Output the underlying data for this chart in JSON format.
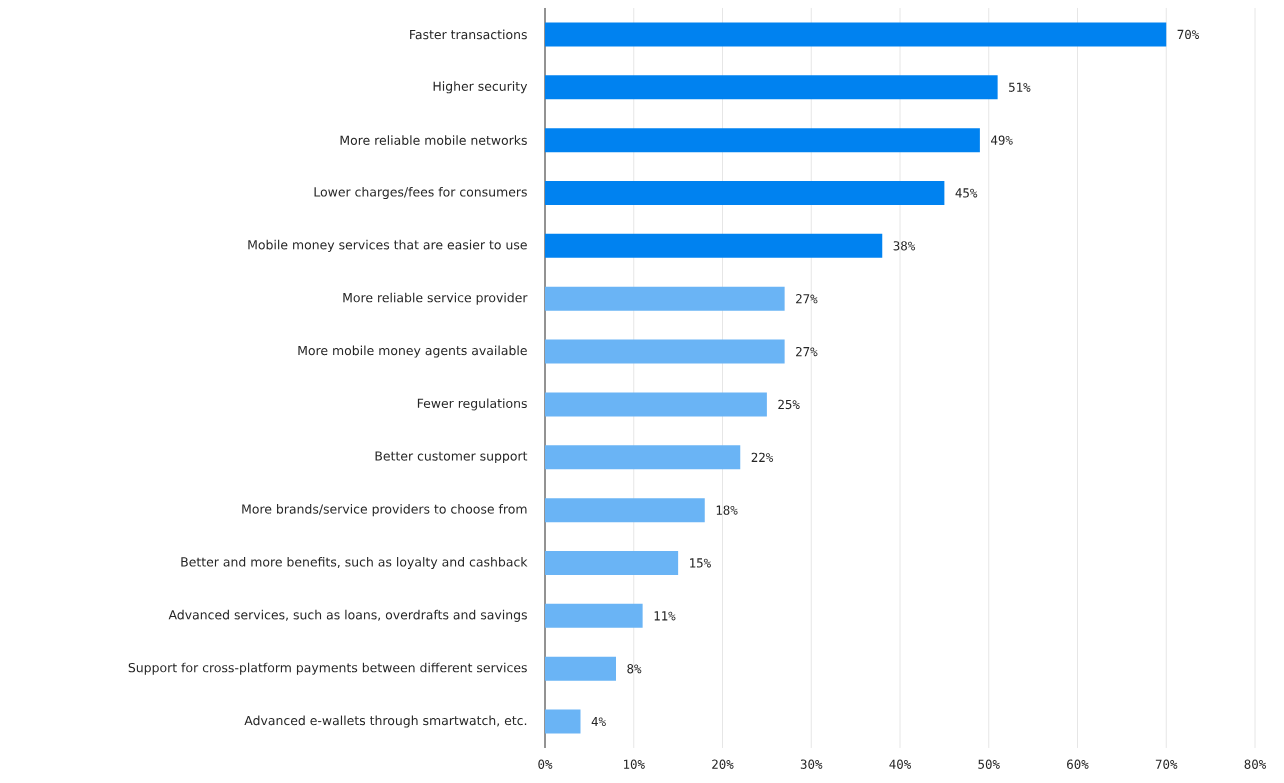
{
  "chart_data": {
    "type": "bar",
    "orientation": "horizontal",
    "categories": [
      "Faster transactions",
      "Higher security",
      "More reliable mobile networks",
      "Lower charges/fees for consumers",
      "Mobile money services that are easier to use",
      "More reliable service provider",
      "More mobile money agents available",
      "Fewer regulations",
      "Better customer support",
      "More brands/service providers to choose from",
      "Better and more benefits, such as loyalty and cashback",
      "Advanced services, such as loans, overdrafts and savings",
      "Support for cross-platform payments between different services",
      "Advanced e-wallets through smartwatch, etc."
    ],
    "values": [
      70,
      51,
      49,
      45,
      38,
      27,
      27,
      25,
      22,
      18,
      15,
      11,
      8,
      4
    ],
    "value_labels": [
      "70%",
      "51%",
      "49%",
      "45%",
      "38%",
      "27%",
      "27%",
      "25%",
      "22%",
      "18%",
      "15%",
      "11%",
      "8%",
      "4%"
    ],
    "colors": [
      "#0082f0",
      "#0082f0",
      "#0082f0",
      "#0082f0",
      "#0082f0",
      "#6ab4f5",
      "#6ab4f5",
      "#6ab4f5",
      "#6ab4f5",
      "#6ab4f5",
      "#6ab4f5",
      "#6ab4f5",
      "#6ab4f5",
      "#6ab4f5"
    ],
    "xlim": [
      0,
      80
    ],
    "xticks": [
      {
        "value": 0,
        "label": "0%"
      },
      {
        "value": 10,
        "label": "10%"
      },
      {
        "value": 20,
        "label": "20%"
      },
      {
        "value": 30,
        "label": "30%"
      },
      {
        "value": 40,
        "label": "40%"
      },
      {
        "value": 50,
        "label": "50%"
      },
      {
        "value": 60,
        "label": "60%"
      },
      {
        "value": 70,
        "label": "70%"
      },
      {
        "value": 80,
        "label": "80%"
      }
    ],
    "grid": "x"
  }
}
